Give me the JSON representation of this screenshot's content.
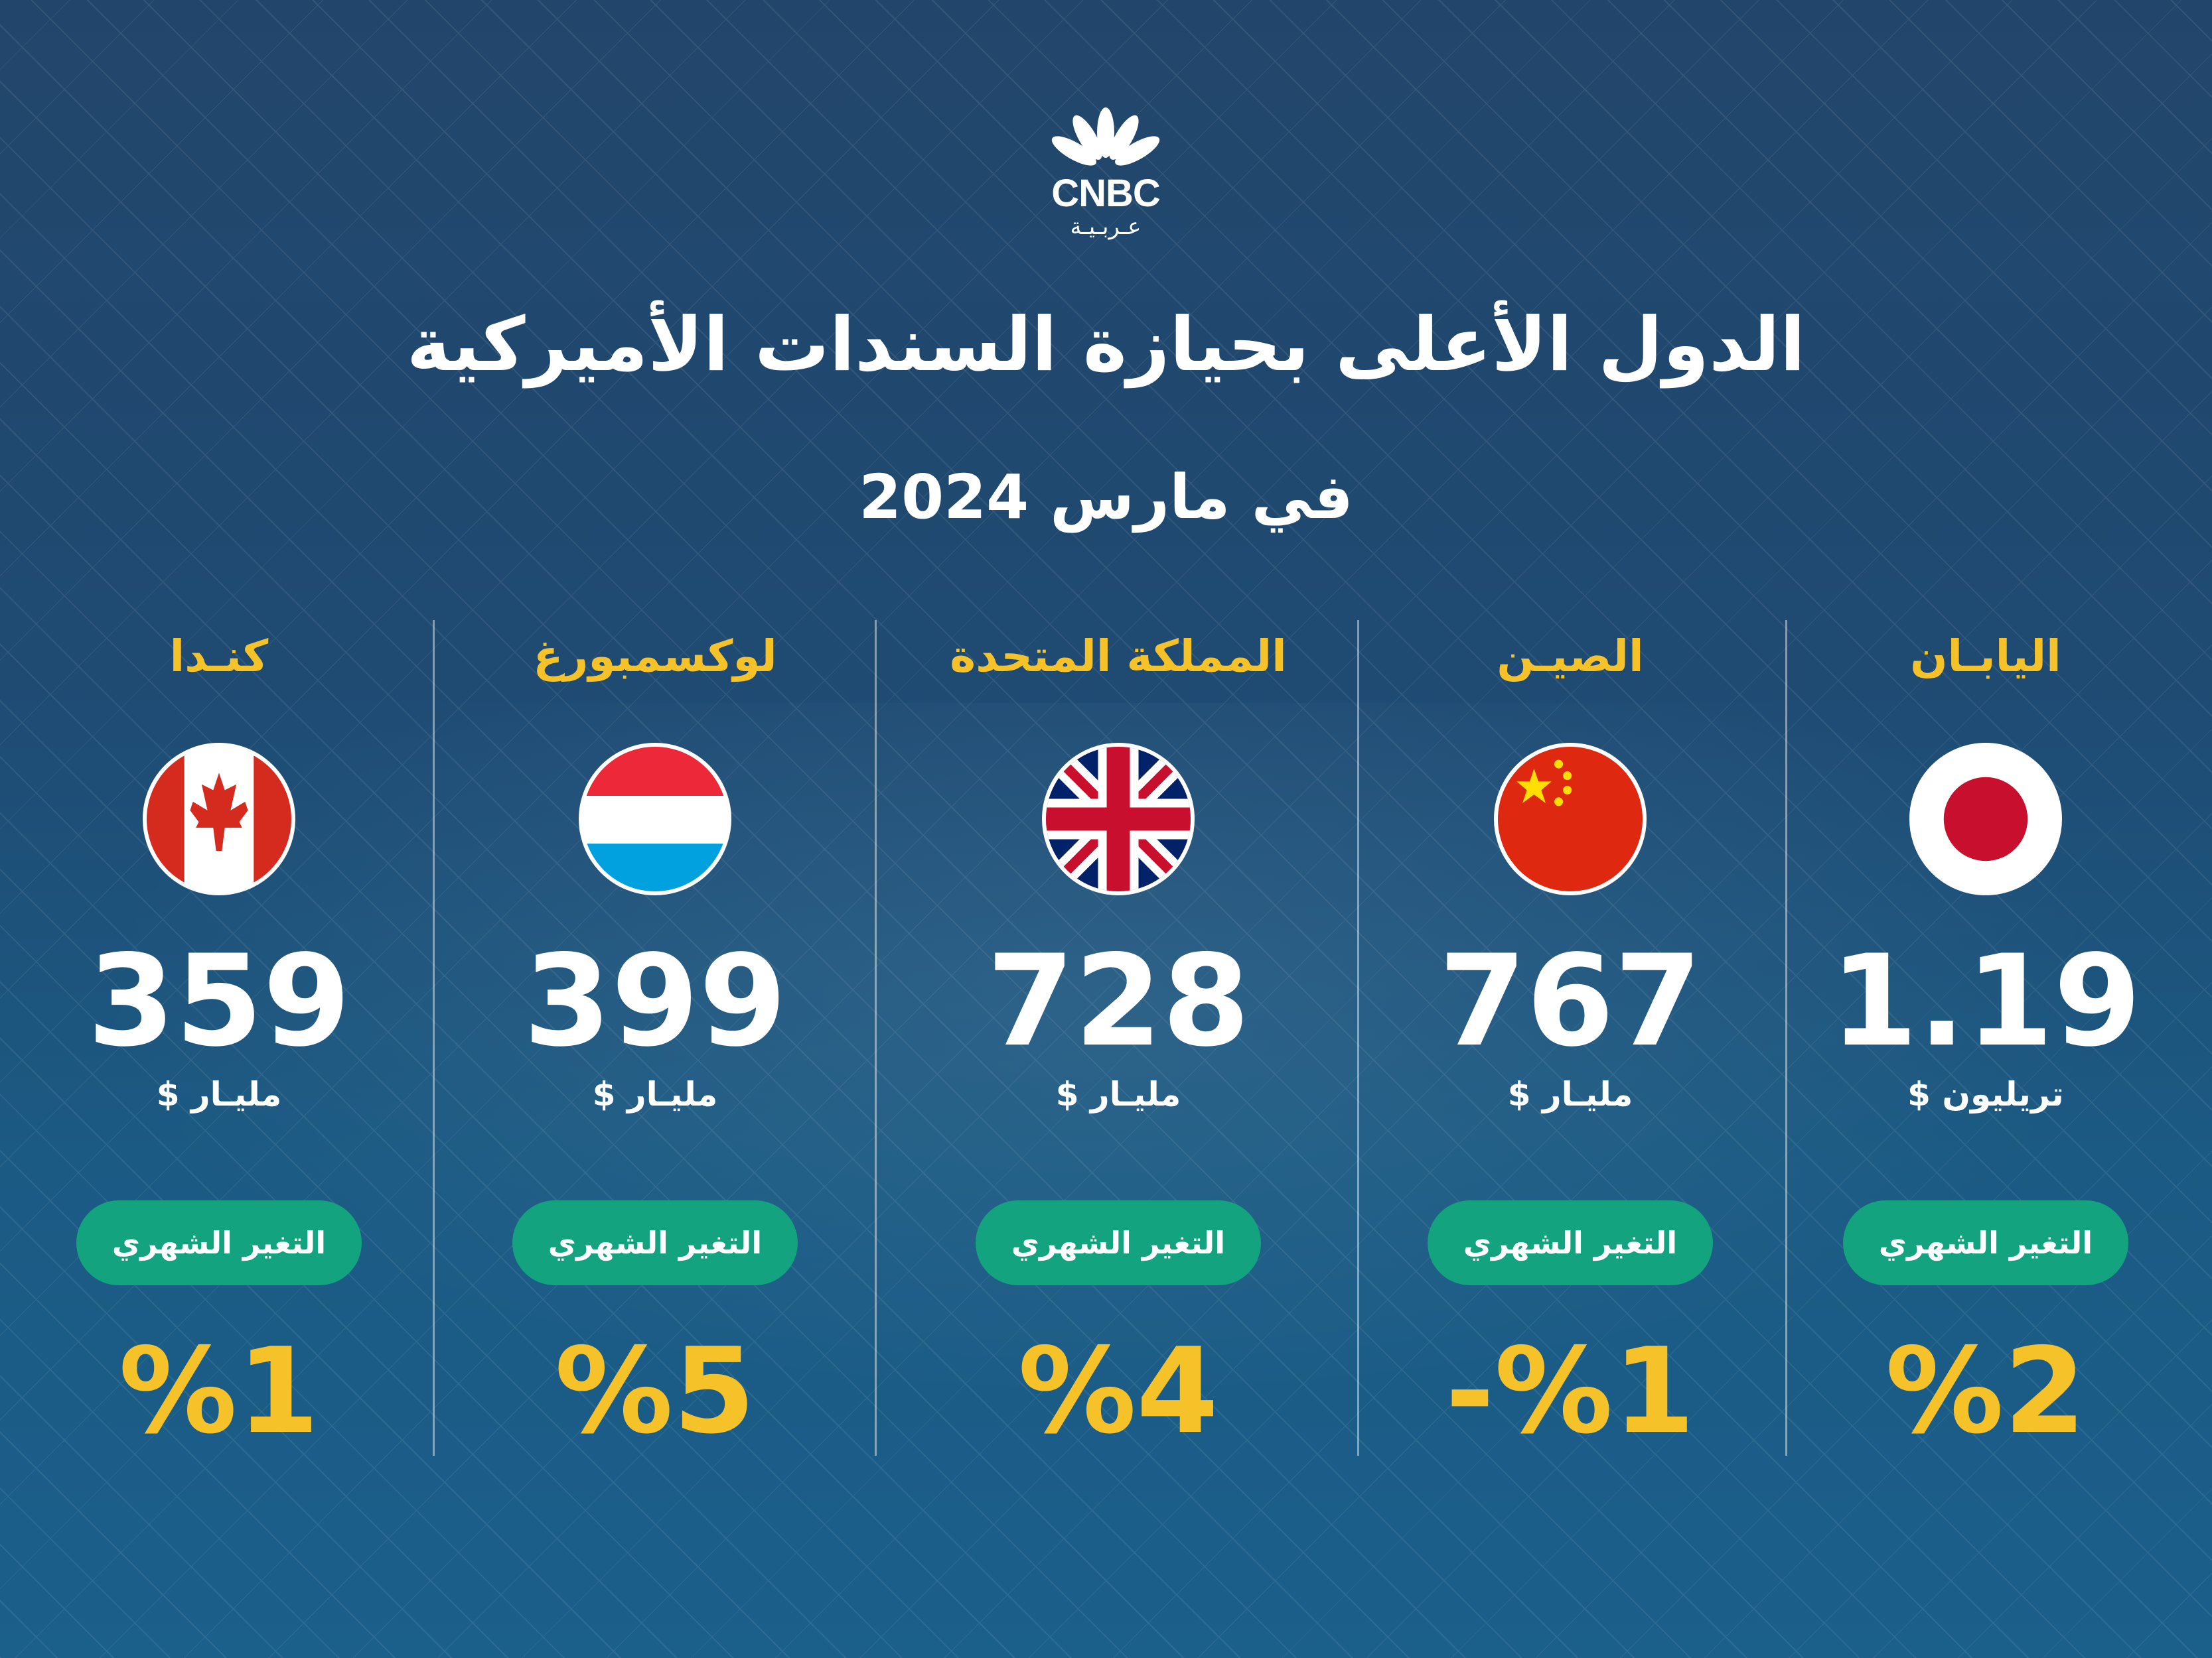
{
  "logo": {
    "brand": "CNBC",
    "sub": "عـربـيـة"
  },
  "title": "الدول الأعلى بحيازة السندات الأميركية",
  "subtitle": "في مارس 2024",
  "change_label": "التغير الشهري",
  "countries": [
    {
      "name": "اليابـان",
      "flag": "japan-flag-icon",
      "value": "1.19",
      "unit": "تريليون $",
      "change": "%2"
    },
    {
      "name": "الصيـن",
      "flag": "china-flag-icon",
      "value": "767",
      "unit": "مليـار $",
      "change": "%1-"
    },
    {
      "name": "المملكة المتحدة",
      "flag": "uk-flag-icon",
      "value": "728",
      "unit": "مليـار $",
      "change": "%4"
    },
    {
      "name": "لوكسمبورغ",
      "flag": "luxembourg-flag-icon",
      "value": "399",
      "unit": "مليـار $",
      "change": "%5"
    },
    {
      "name": "كنـدا",
      "flag": "canada-flag-icon",
      "value": "359",
      "unit": "مليـار $",
      "change": "%1"
    }
  ],
  "colors": {
    "accent": "#f6c22a",
    "pill": "#14a37f",
    "background": "#1f4a72"
  }
}
